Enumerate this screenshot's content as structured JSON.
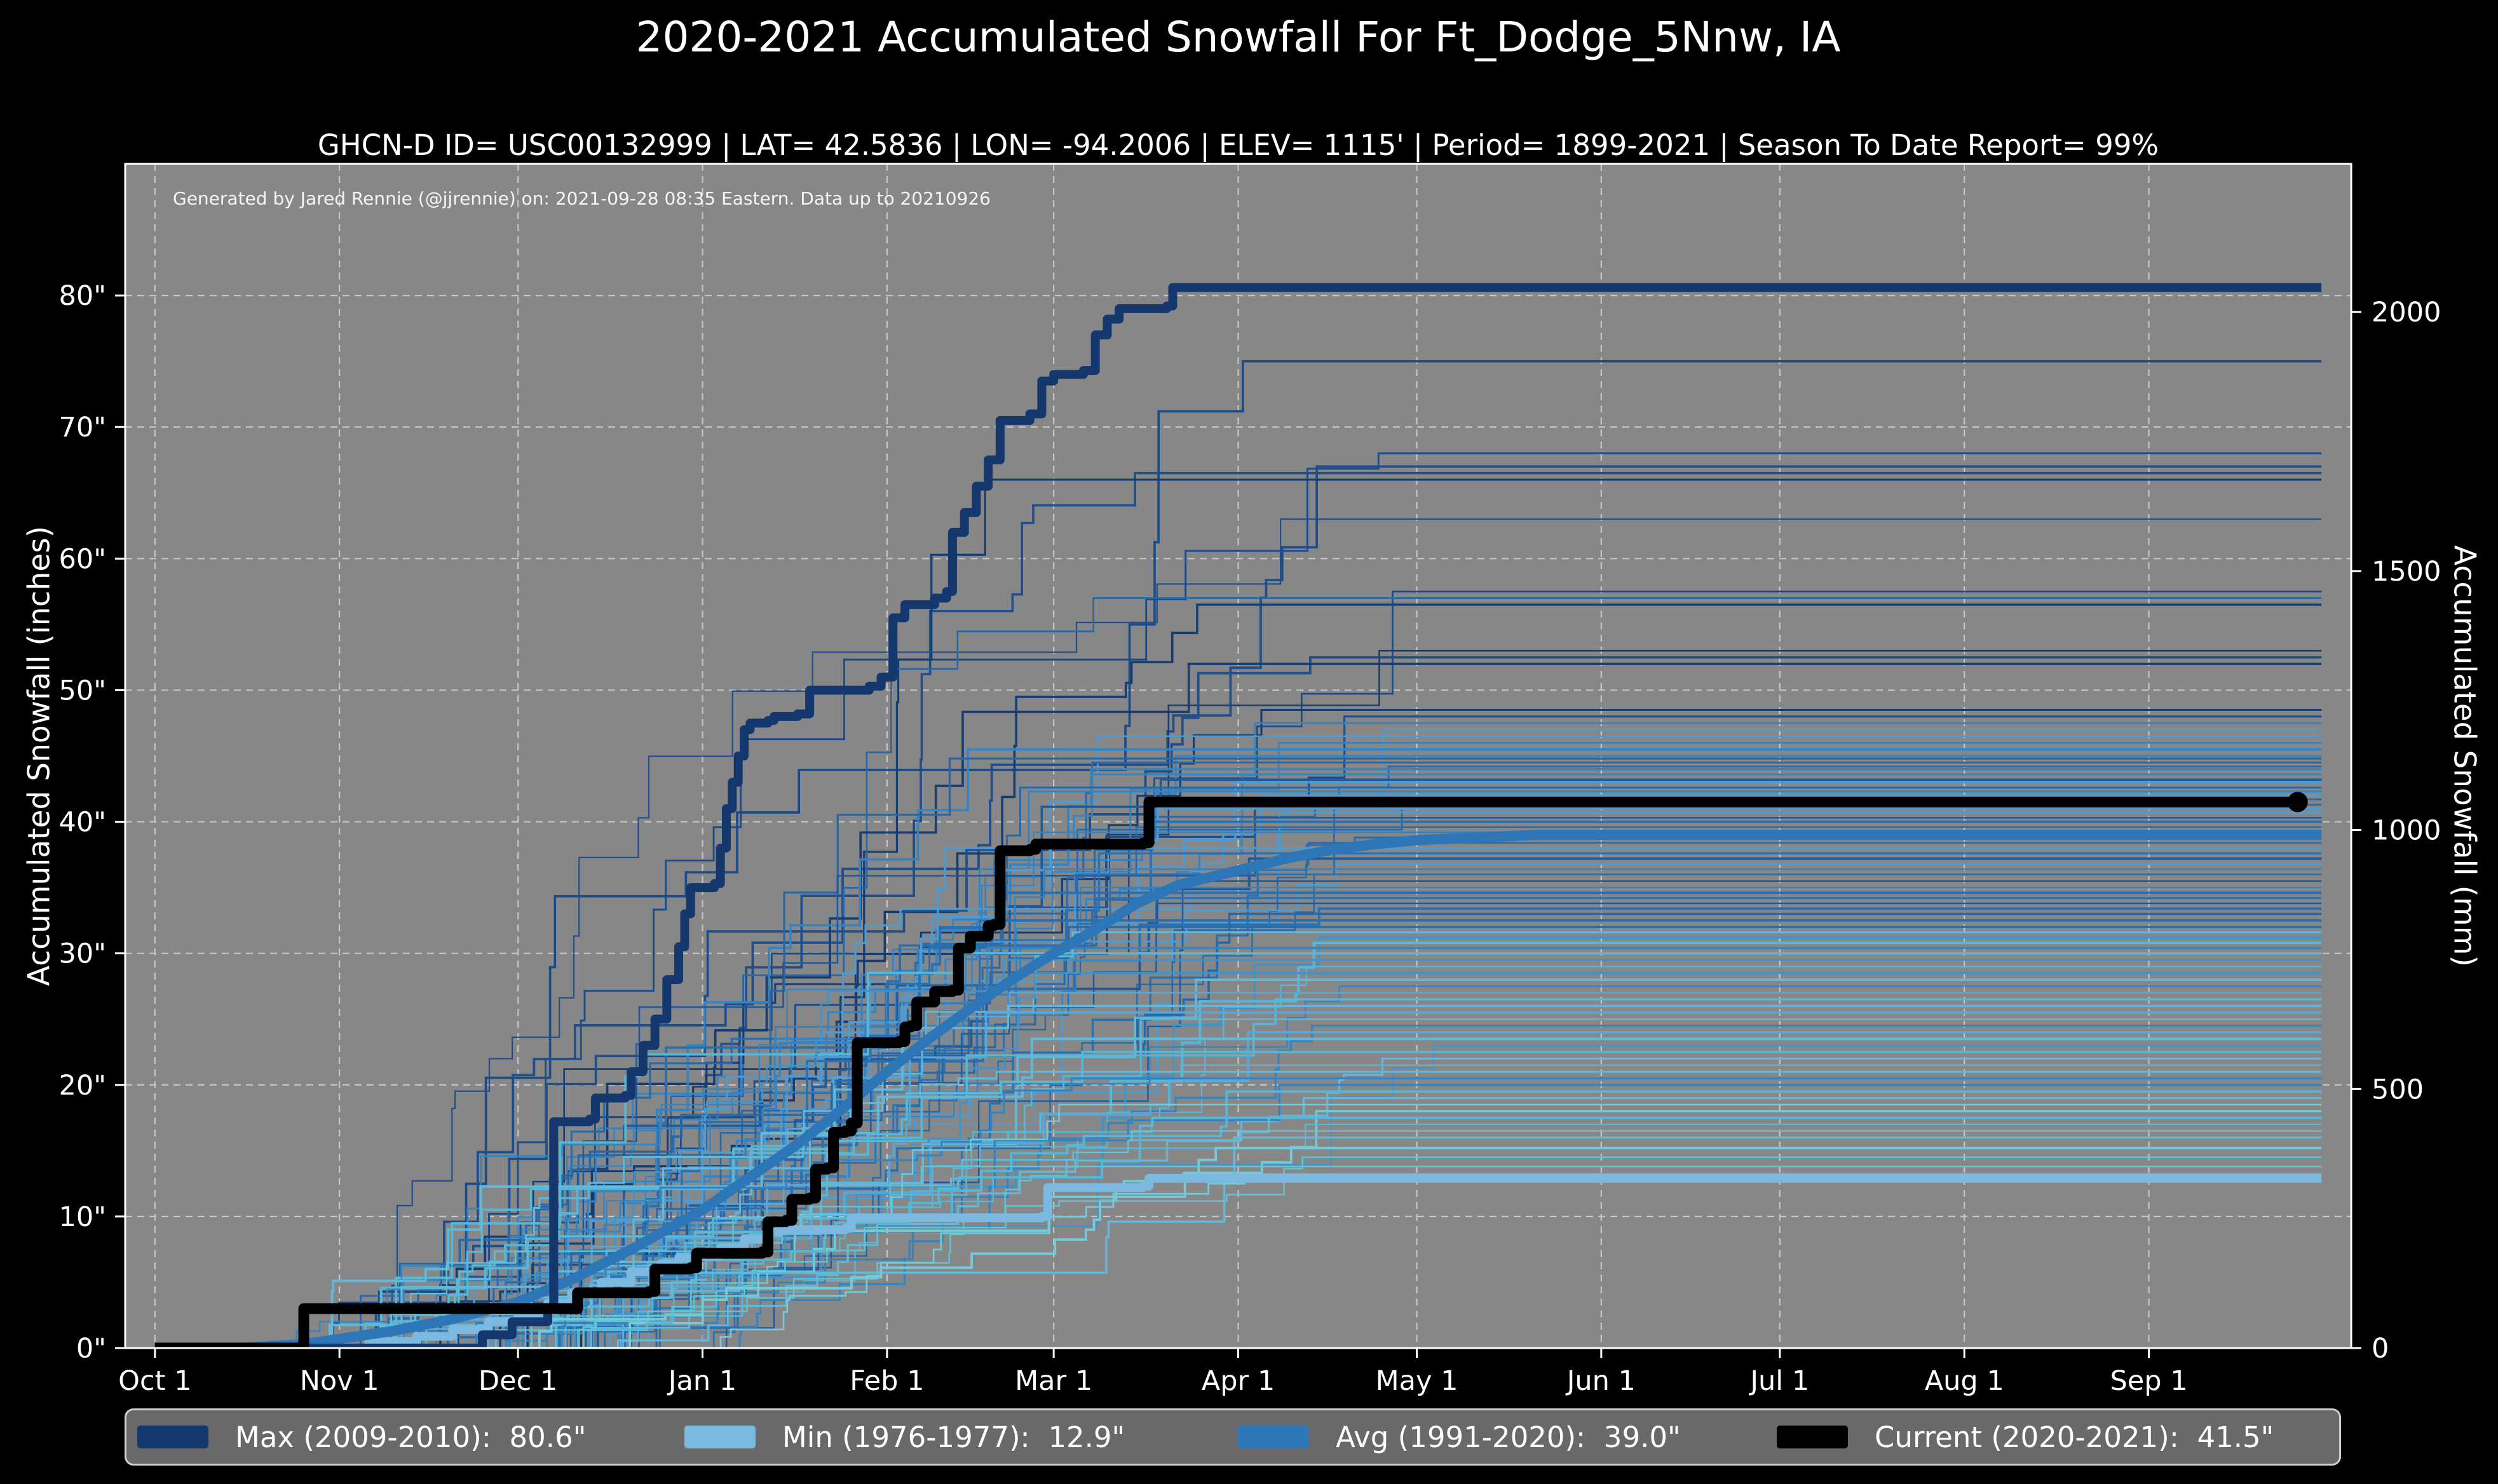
{
  "title": "2020-2021 Accumulated Snowfall For Ft_Dodge_5Nnw, IA",
  "subtitle": "GHCN-D ID= USC00132999 | LAT= 42.5836 | LON= -94.2006 | ELEV= 1115' | Period= 1899-2021 | Season To Date Report= 99%",
  "annotation": "Generated by Jared Rennie (@jjrennie) on: 2021-09-28 08:35 Eastern. Data up to 20210926",
  "axes": {
    "left_label": "Accumulated Snowfall (inches)",
    "right_label": "Accumulated Snowfall (mm)",
    "x_ticks": [
      {
        "day": 0,
        "label": "Oct 1"
      },
      {
        "day": 31,
        "label": "Nov 1"
      },
      {
        "day": 61,
        "label": "Dec 1"
      },
      {
        "day": 92,
        "label": "Jan 1"
      },
      {
        "day": 123,
        "label": "Feb 1"
      },
      {
        "day": 151,
        "label": "Mar 1"
      },
      {
        "day": 182,
        "label": "Apr 1"
      },
      {
        "day": 212,
        "label": "May 1"
      },
      {
        "day": 243,
        "label": "Jun 1"
      },
      {
        "day": 273,
        "label": "Jul 1"
      },
      {
        "day": 304,
        "label": "Aug 1"
      },
      {
        "day": 335,
        "label": "Sep 1"
      }
    ],
    "left_ticks": [
      {
        "value": 0,
        "label": "0\""
      },
      {
        "value": 10,
        "label": "10\""
      },
      {
        "value": 20,
        "label": "20\""
      },
      {
        "value": 30,
        "label": "30\""
      },
      {
        "value": 40,
        "label": "40\""
      },
      {
        "value": 50,
        "label": "50\""
      },
      {
        "value": 60,
        "label": "60\""
      },
      {
        "value": 70,
        "label": "70\""
      },
      {
        "value": 80,
        "label": "80\""
      }
    ],
    "right_ticks": [
      {
        "mm": 0,
        "label": "0"
      },
      {
        "mm": 500,
        "label": "500"
      },
      {
        "mm": 1000,
        "label": "1000"
      },
      {
        "mm": 1500,
        "label": "1500"
      },
      {
        "mm": 2000,
        "label": "2000"
      }
    ]
  },
  "colors": {
    "page_background": "#000000",
    "plot_background": "#878787",
    "gridline": "#cccccc",
    "axis_frame": "#ffffff",
    "text": "#ffffff",
    "max_line": "#14386e",
    "min_line": "#7bb9e0",
    "avg_line": "#2d76b8",
    "current_line": "#000000",
    "legend_background": "#696969",
    "legend_border": "#cfcfcf"
  },
  "legend": [
    {
      "label": "Max (2009-2010):  80.6\"",
      "color": "#14386e",
      "x": 17
    },
    {
      "label": "Min (1976-1977):  12.9\"",
      "color": "#7bb9e0",
      "x": 878
    },
    {
      "label": "Avg (1991-2020):  39.0\"",
      "color": "#2d76b8",
      "x": 1749
    },
    {
      "label": "Current (2020-2021):  41.5\"",
      "color": "#000000",
      "x": 2597
    }
  ],
  "chart_data": {
    "type": "line",
    "title": "2020-2021 Accumulated Snowfall For Ft_Dodge_5Nnw, IA",
    "xlabel": "",
    "ylabel_left": "Accumulated Snowfall (inches)",
    "ylabel_right": "Accumulated Snowfall (mm)",
    "x_unit": "days since Oct 1",
    "xlim": [
      -5,
      369
    ],
    "ylim_inches": [
      0,
      90
    ],
    "grid": true,
    "legend_position": "bottom",
    "series": [
      {
        "name": "Max (2009-2010)",
        "total_inches": 80.6,
        "color": "#14386e",
        "style": "step",
        "width": 14,
        "points": [
          [
            0,
            0
          ],
          [
            50,
            0
          ],
          [
            55,
            1
          ],
          [
            60,
            2
          ],
          [
            66,
            3
          ],
          [
            67,
            17.2
          ],
          [
            73,
            17.4
          ],
          [
            74,
            19
          ],
          [
            79,
            19.2
          ],
          [
            80,
            21
          ],
          [
            82,
            23
          ],
          [
            84,
            25
          ],
          [
            86,
            28
          ],
          [
            88,
            30.5
          ],
          [
            89,
            33
          ],
          [
            90,
            35
          ],
          [
            94,
            35.3
          ],
          [
            95,
            38
          ],
          [
            96,
            41
          ],
          [
            97,
            43
          ],
          [
            98,
            45
          ],
          [
            99,
            47
          ],
          [
            100,
            47.5
          ],
          [
            103,
            47.7
          ],
          [
            104,
            48
          ],
          [
            108,
            48.2
          ],
          [
            110,
            50
          ],
          [
            120,
            50.3
          ],
          [
            122,
            51
          ],
          [
            124,
            55.5
          ],
          [
            126,
            56.5
          ],
          [
            131,
            57
          ],
          [
            133,
            57.5
          ],
          [
            134,
            62
          ],
          [
            136,
            63.5
          ],
          [
            138,
            65.5
          ],
          [
            140,
            67.5
          ],
          [
            142,
            70.5
          ],
          [
            147,
            71
          ],
          [
            149,
            73.5
          ],
          [
            151,
            74
          ],
          [
            156,
            74.3
          ],
          [
            158,
            77
          ],
          [
            160,
            78.2
          ],
          [
            162,
            79
          ],
          [
            170,
            79.2
          ],
          [
            171,
            80.6
          ],
          [
            364,
            80.6
          ]
        ]
      },
      {
        "name": "Min (1976-1977)",
        "total_inches": 12.9,
        "color": "#7bb9e0",
        "style": "step",
        "width": 14,
        "points": [
          [
            0,
            0
          ],
          [
            33,
            0
          ],
          [
            36,
            0.5
          ],
          [
            44,
            0.9
          ],
          [
            50,
            1.4
          ],
          [
            56,
            2.0
          ],
          [
            61,
            2.6
          ],
          [
            66,
            3.4
          ],
          [
            70,
            4.2
          ],
          [
            75,
            5.0
          ],
          [
            80,
            5.8
          ],
          [
            85,
            6.4
          ],
          [
            88,
            6.9
          ],
          [
            91,
            7.0
          ],
          [
            95,
            7.6
          ],
          [
            99,
            8.3
          ],
          [
            103,
            8.8
          ],
          [
            105,
            9.0
          ],
          [
            116,
            9.1
          ],
          [
            117,
            9.9
          ],
          [
            149,
            10.0
          ],
          [
            150,
            12.2
          ],
          [
            166,
            12.3
          ],
          [
            167,
            12.9
          ],
          [
            364,
            12.9
          ]
        ]
      },
      {
        "name": "Avg (1991-2020)",
        "total_inches": 39.0,
        "color": "#2d76b8",
        "style": "line",
        "width": 16,
        "points": [
          [
            0,
            0
          ],
          [
            14,
            0
          ],
          [
            25,
            0.3
          ],
          [
            31,
            0.7
          ],
          [
            40,
            1.3
          ],
          [
            50,
            2.2
          ],
          [
            61,
            3.5
          ],
          [
            70,
            5.2
          ],
          [
            80,
            7.5
          ],
          [
            92,
            10.5
          ],
          [
            100,
            13
          ],
          [
            108,
            15.5
          ],
          [
            115,
            18
          ],
          [
            123,
            21
          ],
          [
            130,
            23.5
          ],
          [
            137,
            25.8
          ],
          [
            144,
            28
          ],
          [
            151,
            30
          ],
          [
            158,
            31.8
          ],
          [
            165,
            33.8
          ],
          [
            172,
            35.2
          ],
          [
            182,
            36.3
          ],
          [
            190,
            37.2
          ],
          [
            198,
            37.9
          ],
          [
            205,
            38.3
          ],
          [
            212,
            38.6
          ],
          [
            222,
            38.8
          ],
          [
            232,
            39.0
          ],
          [
            364,
            39.0
          ]
        ]
      },
      {
        "name": "Current (2020-2021)",
        "total_inches": 41.5,
        "color": "#000000",
        "style": "step",
        "width": 17,
        "endpoint_dot": true,
        "end_day": 360,
        "points": [
          [
            0,
            0
          ],
          [
            24,
            0
          ],
          [
            25,
            3.0
          ],
          [
            70,
            3.0
          ],
          [
            71,
            4.2
          ],
          [
            83,
            4.3
          ],
          [
            84,
            6.0
          ],
          [
            90,
            6.1
          ],
          [
            91,
            7.2
          ],
          [
            102,
            7.3
          ],
          [
            103,
            9.6
          ],
          [
            106,
            9.7
          ],
          [
            107,
            11.3
          ],
          [
            110,
            11.4
          ],
          [
            111,
            13.6
          ],
          [
            113,
            13.7
          ],
          [
            114,
            16.4
          ],
          [
            116,
            16.5
          ],
          [
            117,
            17.1
          ],
          [
            118,
            23.2
          ],
          [
            125,
            23.3
          ],
          [
            126,
            24.4
          ],
          [
            127,
            24.5
          ],
          [
            128,
            26.3
          ],
          [
            131,
            27.1
          ],
          [
            134,
            27.2
          ],
          [
            135,
            30.4
          ],
          [
            137,
            31.3
          ],
          [
            140,
            32.1
          ],
          [
            141,
            32.2
          ],
          [
            142,
            37.8
          ],
          [
            147,
            37.9
          ],
          [
            148,
            38.3
          ],
          [
            166,
            38.4
          ],
          [
            167,
            41.5
          ],
          [
            360,
            41.5
          ]
        ]
      }
    ],
    "background_seasons": {
      "description": "Thin step lines, one per historical season 1899-2021; each rises from 0 during Oct-Dec, accumulates through winter and flattens at its season total through Sep 30.",
      "count": 92,
      "final_values": [
        75,
        68,
        67,
        66.5,
        66,
        63,
        57.5,
        57,
        56.5,
        53,
        52.5,
        52,
        48.5,
        48,
        47.5,
        47,
        46.5,
        46,
        45.5,
        45,
        44.8,
        44.5,
        44.2,
        44,
        43.6,
        43.2,
        43,
        42.6,
        42.3,
        42,
        41.7,
        41.3,
        41,
        40.7,
        40.3,
        40,
        39.6,
        39.2,
        38.8,
        38.4,
        38,
        37.6,
        37.2,
        36.8,
        36.4,
        36,
        35.5,
        35,
        34.6,
        34.2,
        33.8,
        33.4,
        33,
        32.5,
        32,
        31.6,
        31.2,
        30.8,
        30.4,
        30,
        29.5,
        29,
        28.5,
        28,
        27.5,
        27,
        26.5,
        26,
        25.5,
        25,
        24.5,
        24,
        23.5,
        23,
        22.5,
        22,
        21.5,
        21,
        20.5,
        20,
        19.5,
        19,
        18.5,
        18,
        17.5,
        17,
        16.5,
        16,
        15.2,
        14.5,
        13.8,
        13.2
      ],
      "palette_low": [
        "#5fc4d4",
        "#62b8d9",
        "#74cbd8",
        "#56b7d6"
      ],
      "palette_mid": [
        "#56b7d6",
        "#58a7d7",
        "#3f93cb",
        "#62b8d9",
        "#3583c0"
      ],
      "palette_high": [
        "#3583c0",
        "#2a6fb0",
        "#4f9ad0",
        "#1f5a9c",
        "#2668a8"
      ],
      "palette_top": [
        "#1b4c8a",
        "#163d72",
        "#2668a8",
        "#1f4e8a"
      ],
      "start_day_range": [
        20,
        75
      ],
      "end_day_range": [
        140,
        220
      ],
      "width_range": [
        2.2,
        4.0
      ]
    }
  }
}
